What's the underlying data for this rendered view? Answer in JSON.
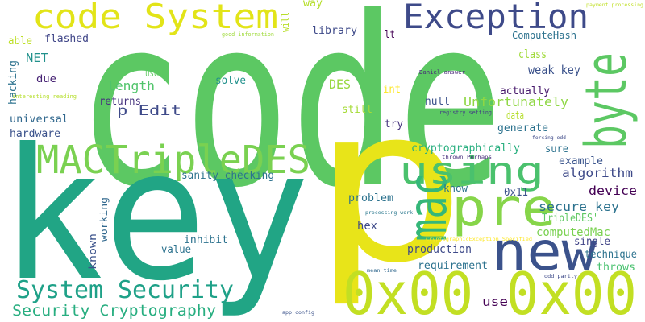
{
  "words": [
    "code",
    "key",
    "p",
    "0x00 0x00",
    "new",
    "byte",
    "Exception",
    "code System",
    "MACTripleDES",
    "using",
    "pre",
    "mac",
    "System Security",
    "Security Cryptography",
    "p Edit",
    "length",
    "used",
    "NET",
    "flashed",
    "able",
    "hacking",
    "due",
    "interesting reading",
    "universal",
    "hardware",
    "returns",
    "solve",
    "DES",
    "library",
    "way",
    "will",
    "good information",
    "lt",
    "int",
    "still",
    "try",
    "null",
    "Daniel answer",
    "registry setting",
    "thrown Perhaps",
    "forcing odd",
    "processing work",
    "CryptographicException Specified",
    "mean time",
    "app config",
    "odd parity",
    "payment processing",
    "ComputeHash",
    "class",
    "weak key",
    "actually",
    "Unfortunately",
    "data",
    "generate",
    "sure",
    "cryptographically",
    "example",
    "algorithm",
    "device",
    "know",
    "0x11",
    "secure key",
    "TripleDES'",
    "computedMac",
    "single",
    "technique",
    "throws",
    "requirement",
    "production",
    "use",
    "hex",
    "problem",
    "sanity checking",
    "working",
    "known",
    "inhibit",
    "value"
  ]
}
